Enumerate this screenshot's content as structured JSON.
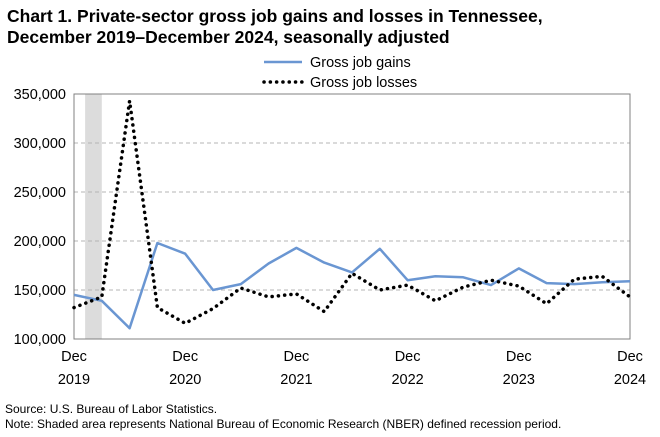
{
  "chart_data": {
    "type": "line",
    "title_line1": "Chart 1. Private-sector gross job gains and losses in Tennessee,",
    "title_line2": "December 2019–December 2024, seasonally adjusted",
    "x_labels": [
      {
        "month": "Dec",
        "year": "2019"
      },
      {
        "month": "Dec",
        "year": "2020"
      },
      {
        "month": "Dec",
        "year": "2021"
      },
      {
        "month": "Dec",
        "year": "2022"
      },
      {
        "month": "Dec",
        "year": "2023"
      },
      {
        "month": "Dec",
        "year": "2024"
      }
    ],
    "y_ticks": [
      "100,000",
      "150,000",
      "200,000",
      "250,000",
      "300,000",
      "350,000"
    ],
    "y_tick_values": [
      100000,
      150000,
      200000,
      250000,
      300000,
      350000
    ],
    "ylim": [
      100000,
      350000
    ],
    "n_quarters": 20,
    "recession": {
      "start": 0.4,
      "end": 1.0
    },
    "series": [
      {
        "name": "Gross job gains",
        "color": "#6a96d2",
        "style": "solid",
        "values": [
          145000,
          139000,
          111000,
          198000,
          187000,
          150000,
          156000,
          177000,
          193000,
          178000,
          168000,
          192000,
          160000,
          164000,
          163000,
          155000,
          172000,
          157000,
          156000,
          158000,
          159000
        ]
      },
      {
        "name": "Gross job losses",
        "color": "#000000",
        "style": "dotted",
        "values": [
          132000,
          143000,
          343000,
          132000,
          116000,
          131000,
          152000,
          143000,
          146000,
          128000,
          167000,
          150000,
          155000,
          139000,
          153000,
          160000,
          154000,
          136000,
          161000,
          164000,
          143000
        ]
      }
    ],
    "grid": "horizontal-dashed"
  },
  "footer": {
    "source": "Source: U.S. Bureau of Labor Statistics.",
    "note": "Note: Shaded area represents National Bureau of Economic Research (NBER) defined  recession period."
  }
}
